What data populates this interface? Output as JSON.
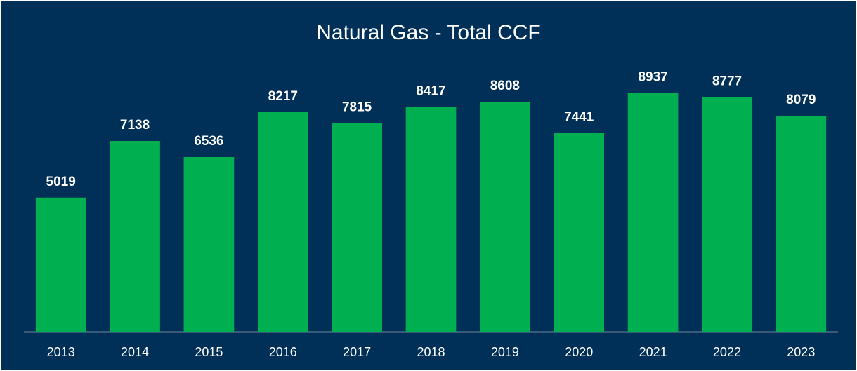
{
  "chart_data": {
    "type": "bar",
    "title": "Natural Gas - Total CCF",
    "categories": [
      "2013",
      "2014",
      "2015",
      "2016",
      "2017",
      "2018",
      "2019",
      "2020",
      "2021",
      "2022",
      "2023"
    ],
    "values": [
      5019,
      7138,
      6536,
      8217,
      7815,
      8417,
      8608,
      7441,
      8937,
      8777,
      8079
    ],
    "color": "#00b050",
    "ylim": [
      0,
      10000
    ]
  }
}
